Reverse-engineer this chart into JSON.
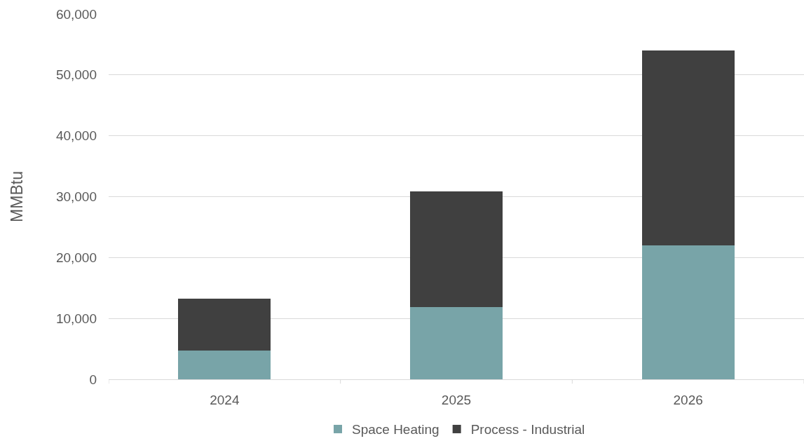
{
  "chart_data": {
    "type": "bar",
    "ylabel": "MMBtu",
    "categories": [
      "2024",
      "2025",
      "2026"
    ],
    "stacked": true,
    "series": [
      {
        "name": "Space Heating",
        "color": "#78a4a8",
        "values": [
          4700,
          11900,
          22000
        ]
      },
      {
        "name": "Process - Industrial",
        "color": "#404040",
        "values": [
          8500,
          19000,
          32000
        ]
      }
    ],
    "ylim": [
      0,
      60000
    ],
    "yticks": [
      {
        "value": 0,
        "label": "0"
      },
      {
        "value": 10000,
        "label": "10,000"
      },
      {
        "value": 20000,
        "label": "20,000"
      },
      {
        "value": 30000,
        "label": "30,000"
      },
      {
        "value": 40000,
        "label": "40,000"
      },
      {
        "value": 50000,
        "label": "50,000"
      },
      {
        "value": 60000,
        "label": "60,000"
      }
    ],
    "grid": "y",
    "legend": "bottom"
  }
}
